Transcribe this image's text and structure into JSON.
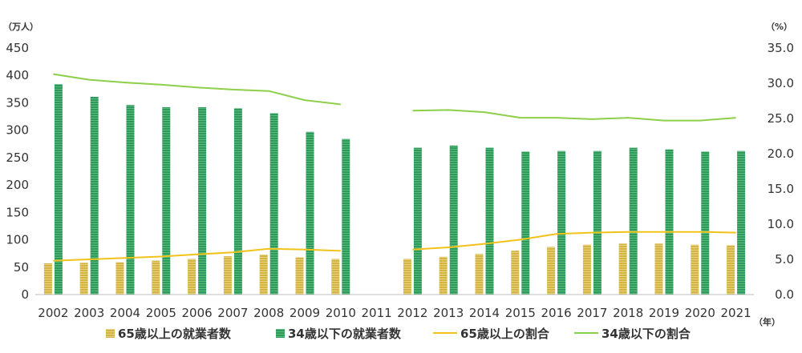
{
  "chart_data": {
    "type": "bar",
    "title": "",
    "left_unit": "（万人）",
    "right_unit": "（%）",
    "x_unit": "（年）",
    "x": [
      "2002",
      "2003",
      "2004",
      "2005",
      "2006",
      "2007",
      "2008",
      "2009",
      "2010",
      "2011",
      "2012",
      "2013",
      "2014",
      "2015",
      "2016",
      "2017",
      "2018",
      "2019",
      "2020",
      "2021"
    ],
    "y_left_ticks": [
      "0",
      "50",
      "100",
      "150",
      "200",
      "250",
      "300",
      "350",
      "400",
      "450"
    ],
    "y_left_lim": [
      0,
      450
    ],
    "y_right_ticks": [
      "0.0",
      "5.0",
      "10.0",
      "15.0",
      "20.0",
      "25.0",
      "30.0",
      "35.0"
    ],
    "y_right_lim": [
      0,
      35
    ],
    "grid": false,
    "legend_position": "bottom",
    "colors": {
      "bar65": "#d4b445",
      "bar34": "#2e9a5a",
      "line65": "#f2c21b",
      "line34": "#8dcf4a"
    },
    "series": [
      {
        "name": "65歳以上の就業者数",
        "kind": "bar",
        "axis": "left",
        "values": [
          57,
          58,
          59,
          62,
          65,
          70,
          73,
          68,
          65,
          null,
          65,
          69,
          74,
          80,
          87,
          91,
          93,
          93,
          91,
          90
        ]
      },
      {
        "name": "34歳以下の就業者数",
        "kind": "bar",
        "axis": "left",
        "values": [
          384,
          361,
          346,
          342,
          342,
          340,
          331,
          297,
          284,
          null,
          268,
          272,
          268,
          261,
          262,
          262,
          268,
          265,
          261,
          262
        ]
      },
      {
        "name": "65歳以上の割合",
        "kind": "line",
        "axis": "right",
        "values": [
          4.8,
          5.0,
          5.2,
          5.4,
          5.7,
          6.0,
          6.5,
          6.4,
          6.2,
          null,
          6.4,
          6.7,
          7.2,
          7.8,
          8.6,
          8.8,
          8.9,
          8.9,
          8.9,
          8.8
        ]
      },
      {
        "name": "34歳以下の割合",
        "kind": "line",
        "axis": "right",
        "values": [
          31.3,
          30.5,
          30.1,
          29.8,
          29.4,
          29.1,
          28.9,
          27.6,
          27.0,
          null,
          26.1,
          26.2,
          25.9,
          25.1,
          25.1,
          24.9,
          25.1,
          24.7,
          24.7,
          25.1
        ]
      }
    ]
  }
}
